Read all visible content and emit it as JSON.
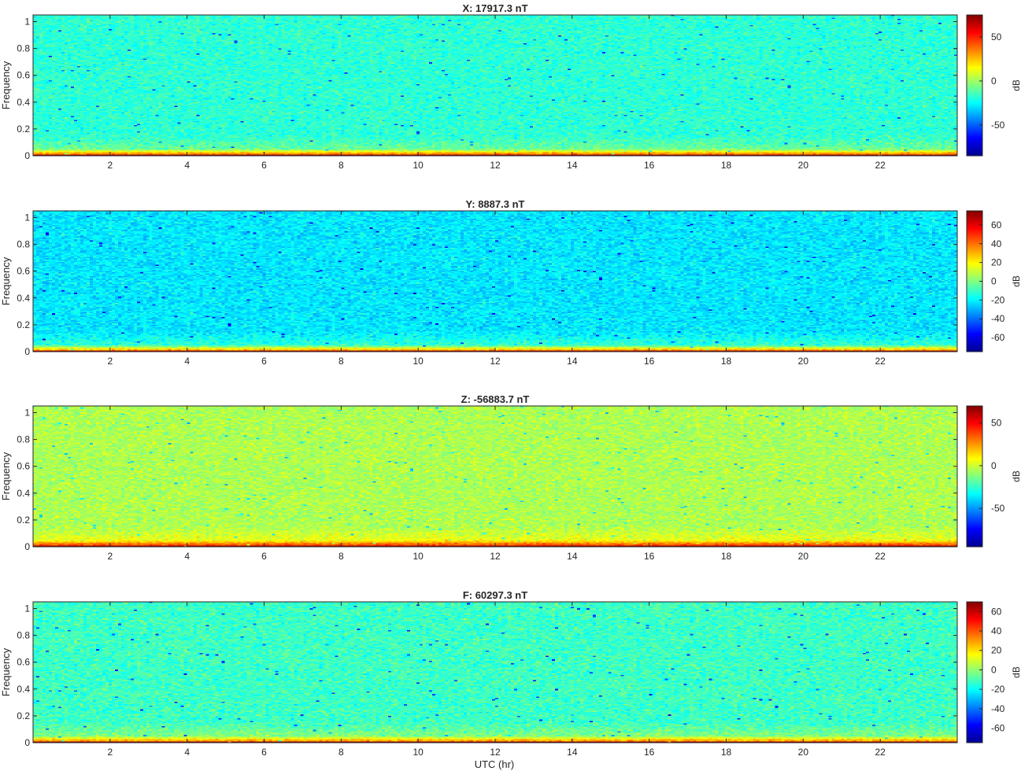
{
  "figure": {
    "xlabel": "UTC (hr)",
    "colormap": [
      "#00008f",
      "#0000ff",
      "#0080ff",
      "#00ffff",
      "#80ff80",
      "#ffff00",
      "#ff8000",
      "#ff0000",
      "#800000"
    ]
  },
  "chart_data": [
    {
      "type": "heatmap",
      "title": "X: 17917.3 nT",
      "ylabel": "Frequency",
      "colorbar_label": "dB",
      "x_ticks": [
        2,
        4,
        6,
        8,
        10,
        12,
        14,
        16,
        18,
        20,
        22
      ],
      "y_ticks": [
        0,
        0.2,
        0.4,
        0.6,
        0.8,
        1
      ],
      "xlim": [
        0,
        24
      ],
      "ylim": [
        0,
        1.05
      ],
      "color_ticks": [
        50,
        0,
        -50
      ],
      "clim": [
        -85,
        75
      ],
      "background_db": -18,
      "low_band_db": 35,
      "floor_db": 70
    },
    {
      "type": "heatmap",
      "title": "Y: 8887.3 nT",
      "ylabel": "Frequency",
      "colorbar_label": "dB",
      "x_ticks": [
        2,
        4,
        6,
        8,
        10,
        12,
        14,
        16,
        18,
        20,
        22
      ],
      "y_ticks": [
        0,
        0.2,
        0.4,
        0.6,
        0.8,
        1
      ],
      "xlim": [
        0,
        24
      ],
      "ylim": [
        0,
        1.05
      ],
      "color_ticks": [
        60,
        40,
        20,
        0,
        -20,
        -40,
        -60
      ],
      "clim": [
        -75,
        75
      ],
      "background_db": -22,
      "low_band_db": 30,
      "floor_db": 68
    },
    {
      "type": "heatmap",
      "title": "Z: -56883.7 nT",
      "ylabel": "Frequency",
      "colorbar_label": "dB",
      "x_ticks": [
        2,
        4,
        6,
        8,
        10,
        12,
        14,
        16,
        18,
        20,
        22
      ],
      "y_ticks": [
        0,
        0.2,
        0.4,
        0.6,
        0.8,
        1
      ],
      "xlim": [
        0,
        24
      ],
      "ylim": [
        0,
        1.05
      ],
      "color_ticks": [
        50,
        0,
        -50
      ],
      "clim": [
        -95,
        70
      ],
      "background_db": -5,
      "low_band_db": 38,
      "floor_db": 66
    },
    {
      "type": "heatmap",
      "title": "F: 60297.3 nT",
      "ylabel": "Frequency",
      "colorbar_label": "dB",
      "x_ticks": [
        2,
        4,
        6,
        8,
        10,
        12,
        14,
        16,
        18,
        20,
        22
      ],
      "y_ticks": [
        0,
        0.2,
        0.4,
        0.6,
        0.8,
        1
      ],
      "xlim": [
        0,
        24
      ],
      "ylim": [
        0,
        1.05
      ],
      "color_ticks": [
        60,
        40,
        20,
        0,
        -20,
        -40,
        -60
      ],
      "clim": [
        -75,
        70
      ],
      "background_db": -12,
      "low_band_db": 30,
      "floor_db": 66
    }
  ]
}
